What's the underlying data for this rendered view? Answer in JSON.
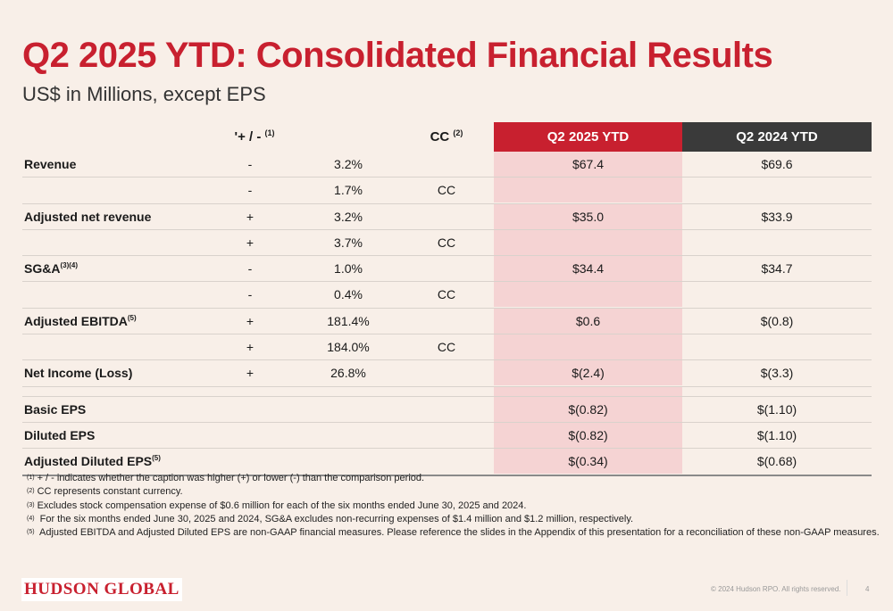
{
  "title": "Q2 2025 YTD: Consolidated Financial Results",
  "subtitle": "US$ in Millions, except EPS",
  "header": {
    "pm": "'+ / -",
    "pm_sup": "(1)",
    "cc": "CC",
    "cc_sup": "(2)",
    "q25": "Q2 2025 YTD",
    "q24": "Q2 2024 YTD"
  },
  "rows": [
    {
      "label": "Revenue",
      "sup": "",
      "sign": "-",
      "pct": "3.2%",
      "cc": "",
      "q25": "$67.4",
      "q24": "$69.6"
    },
    {
      "label": "",
      "sup": "",
      "sign": "-",
      "pct": "1.7%",
      "cc": "CC",
      "q25": "",
      "q24": ""
    },
    {
      "label": "Adjusted net revenue",
      "sup": "",
      "sign": "+",
      "pct": "3.2%",
      "cc": "",
      "q25": "$35.0",
      "q24": "$33.9"
    },
    {
      "label": "",
      "sup": "",
      "sign": "+",
      "pct": "3.7%",
      "cc": "CC",
      "q25": "",
      "q24": ""
    },
    {
      "label": "SG&A",
      "sup": "(3)(4)",
      "sign": "-",
      "pct": "1.0%",
      "cc": "",
      "q25": "$34.4",
      "q24": "$34.7"
    },
    {
      "label": "",
      "sup": "",
      "sign": "-",
      "pct": "0.4%",
      "cc": "CC",
      "q25": "",
      "q24": ""
    },
    {
      "label": "Adjusted EBITDA",
      "sup": "(5)",
      "sign": "+",
      "pct": "181.4%",
      "cc": "",
      "q25": "$0.6",
      "q24": "$(0.8)"
    },
    {
      "label": "",
      "sup": "",
      "sign": "+",
      "pct": "184.0%",
      "cc": "CC",
      "q25": "",
      "q24": ""
    },
    {
      "label": "Net Income (Loss)",
      "sup": "",
      "sign": "+",
      "pct": "26.8%",
      "cc": "",
      "q25": "$(2.4)",
      "q24": "$(3.3)"
    }
  ],
  "eps_rows": [
    {
      "label": "Basic EPS",
      "sup": "",
      "q25": "$(0.82)",
      "q24": "$(1.10)"
    },
    {
      "label": "Diluted EPS",
      "sup": "",
      "q25": "$(0.82)",
      "q24": "$(1.10)"
    },
    {
      "label": "Adjusted Diluted EPS",
      "sup": "(5)",
      "q25": "$(0.34)",
      "q24": "$(0.68)"
    }
  ],
  "notes": [
    {
      "sup": "(1)",
      "text": "+ / - indicates whether the caption was higher (+) or lower (-) than the comparison period."
    },
    {
      "sup": "(2)",
      "text": "CC represents constant currency."
    },
    {
      "sup": "(3)",
      "text": "Excludes stock compensation expense of $0.6 million for each of the six months ended June 30, 2025 and 2024."
    },
    {
      "sup": "(4)",
      "text": " For the six months ended June 30, 2025 and 2024, SG&A excludes non-recurring expenses of $1.4 million and $1.2 million, respectively."
    },
    {
      "sup": "(5)",
      "text": " Adjusted EBITDA and Adjusted Diluted EPS are non-GAAP financial measures.  Please reference the slides in the Appendix of this presentation for a reconciliation of these non-GAAP measures."
    }
  ],
  "footer": {
    "logo": "HUDSON GLOBAL",
    "copyright": "© 2024 Hudson RPO. All rights reserved.",
    "page": "4"
  },
  "colors": {
    "accent": "#c8202f",
    "dark_header": "#3a3a3a",
    "highlight": "#f5d3d3",
    "background": "#f8efe8"
  }
}
